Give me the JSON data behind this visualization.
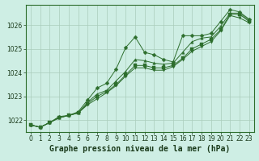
{
  "title": "Graphe pression niveau de la mer (hPa)",
  "background_color": "#ceeee4",
  "line_color": "#2d6e2d",
  "grid_color": "#aaccbb",
  "xlim": [
    -0.5,
    23.5
  ],
  "ylim": [
    1021.5,
    1026.85
  ],
  "yticks": [
    1022,
    1023,
    1024,
    1025,
    1026
  ],
  "xticks": [
    0,
    1,
    2,
    3,
    4,
    5,
    6,
    7,
    8,
    9,
    10,
    11,
    12,
    13,
    14,
    15,
    16,
    17,
    18,
    19,
    20,
    21,
    22,
    23
  ],
  "series": [
    [
      1021.8,
      1021.7,
      1021.9,
      1022.15,
      1022.2,
      1022.35,
      1022.85,
      1023.35,
      1023.55,
      1024.15,
      1025.05,
      1025.5,
      1024.85,
      1024.75,
      1024.55,
      1024.45,
      1025.55,
      1025.55,
      1025.55,
      1025.65,
      1026.15,
      1026.65,
      1026.55,
      1026.25
    ],
    [
      1021.8,
      1021.7,
      1021.9,
      1022.1,
      1022.2,
      1022.3,
      1022.75,
      1023.1,
      1023.25,
      1023.65,
      1024.05,
      1024.55,
      1024.5,
      1024.4,
      1024.35,
      1024.4,
      1024.85,
      1025.3,
      1025.45,
      1025.5,
      1025.95,
      1026.5,
      1026.5,
      1026.2
    ],
    [
      1021.8,
      1021.7,
      1021.9,
      1022.1,
      1022.2,
      1022.3,
      1022.7,
      1023.0,
      1023.2,
      1023.5,
      1023.9,
      1024.3,
      1024.3,
      1024.2,
      1024.2,
      1024.3,
      1024.6,
      1025.0,
      1025.2,
      1025.4,
      1025.8,
      1026.45,
      1026.45,
      1026.15
    ],
    [
      1021.8,
      1021.7,
      1021.9,
      1022.1,
      1022.2,
      1022.3,
      1022.65,
      1022.9,
      1023.15,
      1023.45,
      1023.85,
      1024.2,
      1024.2,
      1024.1,
      1024.1,
      1024.25,
      1024.55,
      1024.9,
      1025.1,
      1025.3,
      1025.75,
      1026.4,
      1026.3,
      1026.1
    ]
  ],
  "markers": [
    "D",
    "^",
    "s",
    "v"
  ],
  "marker_size": 2.5,
  "fontsize_label": 7.0,
  "fontsize_tick": 5.5,
  "tick_color": "#1a3a1a"
}
